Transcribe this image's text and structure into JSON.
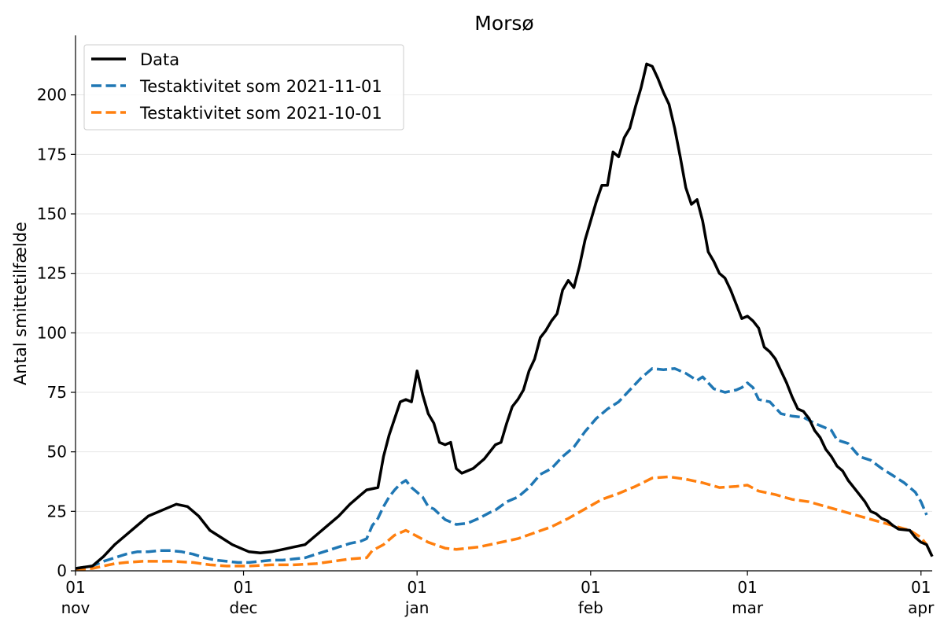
{
  "chart_data": {
    "type": "line",
    "title": "Morsø",
    "ylabel": "Antal smittetilfælde",
    "xlabel": "",
    "x_range": [
      "2021-11-01",
      "2022-04-03"
    ],
    "ylim": [
      0,
      225
    ],
    "yticks": [
      0,
      25,
      50,
      75,
      100,
      125,
      150,
      175,
      200
    ],
    "xticks": [
      {
        "date": "2021-11-01",
        "day": "01",
        "month": "nov"
      },
      {
        "date": "2021-12-01",
        "day": "01",
        "month": "dec"
      },
      {
        "date": "2022-01-01",
        "day": "01",
        "month": "jan"
      },
      {
        "date": "2022-02-01",
        "day": "01",
        "month": "feb"
      },
      {
        "date": "2022-03-01",
        "day": "01",
        "month": "mar"
      },
      {
        "date": "2022-04-01",
        "day": "01",
        "month": "apr"
      }
    ],
    "grid": "horizontal",
    "legend_position": "top-left",
    "series": [
      {
        "name": "Data",
        "color": "#000000",
        "style": "solid",
        "points": [
          [
            "2021-11-01",
            1
          ],
          [
            "2021-11-04",
            2
          ],
          [
            "2021-11-06",
            6
          ],
          [
            "2021-11-08",
            11
          ],
          [
            "2021-11-10",
            15
          ],
          [
            "2021-11-12",
            19
          ],
          [
            "2021-11-14",
            23
          ],
          [
            "2021-11-15",
            24
          ],
          [
            "2021-11-17",
            26
          ],
          [
            "2021-11-19",
            28
          ],
          [
            "2021-11-21",
            27
          ],
          [
            "2021-11-23",
            23
          ],
          [
            "2021-11-25",
            17
          ],
          [
            "2021-11-27",
            14
          ],
          [
            "2021-11-29",
            11
          ],
          [
            "2021-12-01",
            9
          ],
          [
            "2021-12-02",
            8
          ],
          [
            "2021-12-04",
            7.5
          ],
          [
            "2021-12-06",
            8
          ],
          [
            "2021-12-08",
            9
          ],
          [
            "2021-12-10",
            10
          ],
          [
            "2021-12-12",
            11
          ],
          [
            "2021-12-14",
            15
          ],
          [
            "2021-12-16",
            19
          ],
          [
            "2021-12-18",
            23
          ],
          [
            "2021-12-20",
            28
          ],
          [
            "2021-12-22",
            32
          ],
          [
            "2021-12-23",
            34
          ],
          [
            "2021-12-25",
            35
          ],
          [
            "2021-12-26",
            48
          ],
          [
            "2021-12-27",
            57
          ],
          [
            "2021-12-28",
            64
          ],
          [
            "2021-12-29",
            71
          ],
          [
            "2021-12-30",
            72
          ],
          [
            "2021-12-31",
            71
          ],
          [
            "2022-01-01",
            84
          ],
          [
            "2022-01-02",
            74
          ],
          [
            "2022-01-03",
            66
          ],
          [
            "2022-01-04",
            62
          ],
          [
            "2022-01-05",
            54
          ],
          [
            "2022-01-06",
            53
          ],
          [
            "2022-01-07",
            54
          ],
          [
            "2022-01-08",
            43
          ],
          [
            "2022-01-09",
            41
          ],
          [
            "2022-01-11",
            43
          ],
          [
            "2022-01-13",
            47
          ],
          [
            "2022-01-15",
            53
          ],
          [
            "2022-01-16",
            54
          ],
          [
            "2022-01-17",
            62
          ],
          [
            "2022-01-18",
            69
          ],
          [
            "2022-01-19",
            72
          ],
          [
            "2022-01-20",
            76
          ],
          [
            "2022-01-21",
            84
          ],
          [
            "2022-01-22",
            89
          ],
          [
            "2022-01-23",
            98
          ],
          [
            "2022-01-24",
            101
          ],
          [
            "2022-01-25",
            105
          ],
          [
            "2022-01-26",
            108
          ],
          [
            "2022-01-27",
            118
          ],
          [
            "2022-01-28",
            122
          ],
          [
            "2022-01-29",
            119
          ],
          [
            "2022-01-30",
            128
          ],
          [
            "2022-01-31",
            139
          ],
          [
            "2022-02-01",
            147
          ],
          [
            "2022-02-02",
            155
          ],
          [
            "2022-02-03",
            162
          ],
          [
            "2022-02-04",
            162
          ],
          [
            "2022-02-05",
            176
          ],
          [
            "2022-02-06",
            174
          ],
          [
            "2022-02-07",
            182
          ],
          [
            "2022-02-08",
            186
          ],
          [
            "2022-02-09",
            195
          ],
          [
            "2022-02-10",
            203
          ],
          [
            "2022-02-11",
            213
          ],
          [
            "2022-02-12",
            212
          ],
          [
            "2022-02-13",
            207
          ],
          [
            "2022-02-14",
            201
          ],
          [
            "2022-02-15",
            196
          ],
          [
            "2022-02-16",
            186
          ],
          [
            "2022-02-17",
            174
          ],
          [
            "2022-02-18",
            161
          ],
          [
            "2022-02-19",
            154
          ],
          [
            "2022-02-20",
            156
          ],
          [
            "2022-02-21",
            147
          ],
          [
            "2022-02-22",
            134
          ],
          [
            "2022-02-23",
            130
          ],
          [
            "2022-02-24",
            125
          ],
          [
            "2022-02-25",
            123
          ],
          [
            "2022-02-26",
            118
          ],
          [
            "2022-02-27",
            112
          ],
          [
            "2022-02-28",
            106
          ],
          [
            "2022-03-01",
            107
          ],
          [
            "2022-03-02",
            105
          ],
          [
            "2022-03-03",
            102
          ],
          [
            "2022-03-04",
            94
          ],
          [
            "2022-03-05",
            92
          ],
          [
            "2022-03-06",
            89
          ],
          [
            "2022-03-07",
            84
          ],
          [
            "2022-03-08",
            79
          ],
          [
            "2022-03-09",
            73
          ],
          [
            "2022-03-10",
            68
          ],
          [
            "2022-03-11",
            67
          ],
          [
            "2022-03-12",
            64
          ],
          [
            "2022-03-13",
            59
          ],
          [
            "2022-03-14",
            56
          ],
          [
            "2022-03-15",
            51
          ],
          [
            "2022-03-16",
            48
          ],
          [
            "2022-03-17",
            44
          ],
          [
            "2022-03-18",
            42
          ],
          [
            "2022-03-19",
            38
          ],
          [
            "2022-03-20",
            35
          ],
          [
            "2022-03-21",
            32
          ],
          [
            "2022-03-22",
            29
          ],
          [
            "2022-03-23",
            25
          ],
          [
            "2022-03-24",
            24
          ],
          [
            "2022-03-25",
            22
          ],
          [
            "2022-03-26",
            21
          ],
          [
            "2022-03-27",
            19
          ],
          [
            "2022-03-28",
            17.5
          ],
          [
            "2022-03-30",
            17
          ],
          [
            "2022-03-31",
            14
          ],
          [
            "2022-04-01",
            12
          ],
          [
            "2022-04-02",
            11
          ],
          [
            "2022-04-03",
            6
          ]
        ]
      },
      {
        "name": "Testaktivitet som 2021-11-01",
        "color": "#1f77b4",
        "style": "dashed",
        "points": [
          [
            "2021-11-01",
            1
          ],
          [
            "2021-11-04",
            2
          ],
          [
            "2021-11-06",
            4
          ],
          [
            "2021-11-08",
            5.5
          ],
          [
            "2021-11-10",
            7
          ],
          [
            "2021-11-12",
            8
          ],
          [
            "2021-11-14",
            8
          ],
          [
            "2021-11-16",
            8.5
          ],
          [
            "2021-11-18",
            8.5
          ],
          [
            "2021-11-20",
            8
          ],
          [
            "2021-11-22",
            7
          ],
          [
            "2021-11-24",
            5.5
          ],
          [
            "2021-11-26",
            4.5
          ],
          [
            "2021-11-28",
            4
          ],
          [
            "2021-11-30",
            3.5
          ],
          [
            "2021-12-02",
            3.5
          ],
          [
            "2021-12-04",
            4
          ],
          [
            "2021-12-06",
            4.5
          ],
          [
            "2021-12-08",
            4.5
          ],
          [
            "2021-12-10",
            5
          ],
          [
            "2021-12-12",
            5.5
          ],
          [
            "2021-12-14",
            7
          ],
          [
            "2021-12-16",
            8.5
          ],
          [
            "2021-12-18",
            10
          ],
          [
            "2021-12-20",
            11.5
          ],
          [
            "2021-12-22",
            12.5
          ],
          [
            "2021-12-23",
            13.5
          ],
          [
            "2021-12-24",
            19
          ],
          [
            "2021-12-25",
            22
          ],
          [
            "2021-12-26",
            27
          ],
          [
            "2021-12-27",
            31
          ],
          [
            "2021-12-28",
            34
          ],
          [
            "2021-12-29",
            36.5
          ],
          [
            "2021-12-30",
            38
          ],
          [
            "2021-12-31",
            35
          ],
          [
            "2022-01-01",
            33
          ],
          [
            "2022-01-02",
            31
          ],
          [
            "2022-01-03",
            27
          ],
          [
            "2022-01-04",
            26
          ],
          [
            "2022-01-06",
            21.5
          ],
          [
            "2022-01-08",
            19.5
          ],
          [
            "2022-01-10",
            20
          ],
          [
            "2022-01-12",
            22
          ],
          [
            "2022-01-14",
            24.5
          ],
          [
            "2022-01-15",
            25.5
          ],
          [
            "2022-01-17",
            29
          ],
          [
            "2022-01-19",
            31
          ],
          [
            "2022-01-21",
            35
          ],
          [
            "2022-01-23",
            40.5
          ],
          [
            "2022-01-25",
            43
          ],
          [
            "2022-01-27",
            48
          ],
          [
            "2022-01-29",
            52
          ],
          [
            "2022-01-31",
            58.5
          ],
          [
            "2022-02-02",
            64
          ],
          [
            "2022-02-04",
            68
          ],
          [
            "2022-02-06",
            71
          ],
          [
            "2022-02-08",
            76
          ],
          [
            "2022-02-10",
            81
          ],
          [
            "2022-02-12",
            85
          ],
          [
            "2022-02-14",
            84.5
          ],
          [
            "2022-02-16",
            85
          ],
          [
            "2022-02-18",
            83
          ],
          [
            "2022-02-20",
            80
          ],
          [
            "2022-02-21",
            81.5
          ],
          [
            "2022-02-23",
            76.5
          ],
          [
            "2022-02-25",
            75
          ],
          [
            "2022-02-27",
            76
          ],
          [
            "2022-02-28",
            77
          ],
          [
            "2022-03-01",
            79
          ],
          [
            "2022-03-02",
            77
          ],
          [
            "2022-03-03",
            72
          ],
          [
            "2022-03-05",
            71
          ],
          [
            "2022-03-07",
            66
          ],
          [
            "2022-03-09",
            65
          ],
          [
            "2022-03-11",
            64.5
          ],
          [
            "2022-03-13",
            62
          ],
          [
            "2022-03-15",
            60
          ],
          [
            "2022-03-16",
            59
          ],
          [
            "2022-03-17",
            55
          ],
          [
            "2022-03-19",
            53.5
          ],
          [
            "2022-03-21",
            48
          ],
          [
            "2022-03-23",
            46.5
          ],
          [
            "2022-03-25",
            43
          ],
          [
            "2022-03-27",
            40
          ],
          [
            "2022-03-29",
            37
          ],
          [
            "2022-03-31",
            33
          ],
          [
            "2022-04-01",
            29
          ],
          [
            "2022-04-02",
            23.5
          ]
        ]
      },
      {
        "name": "Testaktivitet som 2021-10-01",
        "color": "#ff7f0e",
        "style": "dashed",
        "points": [
          [
            "2021-11-01",
            0.5
          ],
          [
            "2021-11-04",
            1
          ],
          [
            "2021-11-06",
            2
          ],
          [
            "2021-11-08",
            3
          ],
          [
            "2021-11-10",
            3.5
          ],
          [
            "2021-11-13",
            4
          ],
          [
            "2021-11-18",
            4
          ],
          [
            "2021-11-22",
            3.5
          ],
          [
            "2021-11-25",
            2.5
          ],
          [
            "2021-11-28",
            2
          ],
          [
            "2021-12-02",
            2
          ],
          [
            "2021-12-06",
            2.5
          ],
          [
            "2021-12-10",
            2.5
          ],
          [
            "2021-12-14",
            3
          ],
          [
            "2021-12-17",
            4
          ],
          [
            "2021-12-20",
            5
          ],
          [
            "2021-12-23",
            5.5
          ],
          [
            "2021-12-24",
            8.5
          ],
          [
            "2021-12-26",
            11
          ],
          [
            "2021-12-28",
            15
          ],
          [
            "2021-12-30",
            17
          ],
          [
            "2022-01-01",
            14.5
          ],
          [
            "2022-01-03",
            12
          ],
          [
            "2022-01-06",
            9.5
          ],
          [
            "2022-01-08",
            9
          ],
          [
            "2022-01-12",
            10
          ],
          [
            "2022-01-15",
            11.5
          ],
          [
            "2022-01-19",
            13.5
          ],
          [
            "2022-01-22",
            16
          ],
          [
            "2022-01-25",
            18.5
          ],
          [
            "2022-01-28",
            22
          ],
          [
            "2022-01-31",
            26
          ],
          [
            "2022-02-03",
            30
          ],
          [
            "2022-02-06",
            32.5
          ],
          [
            "2022-02-09",
            35.5
          ],
          [
            "2022-02-12",
            39
          ],
          [
            "2022-02-15",
            39.5
          ],
          [
            "2022-02-18",
            38.5
          ],
          [
            "2022-02-21",
            37
          ],
          [
            "2022-02-24",
            35
          ],
          [
            "2022-02-27",
            35.5
          ],
          [
            "2022-03-01",
            36
          ],
          [
            "2022-03-03",
            33.5
          ],
          [
            "2022-03-06",
            32
          ],
          [
            "2022-03-09",
            30
          ],
          [
            "2022-03-12",
            29
          ],
          [
            "2022-03-15",
            27
          ],
          [
            "2022-03-18",
            25
          ],
          [
            "2022-03-21",
            23
          ],
          [
            "2022-03-24",
            21
          ],
          [
            "2022-03-27",
            19
          ],
          [
            "2022-03-30",
            17
          ],
          [
            "2022-04-01",
            14
          ],
          [
            "2022-04-02",
            11
          ]
        ]
      }
    ]
  }
}
